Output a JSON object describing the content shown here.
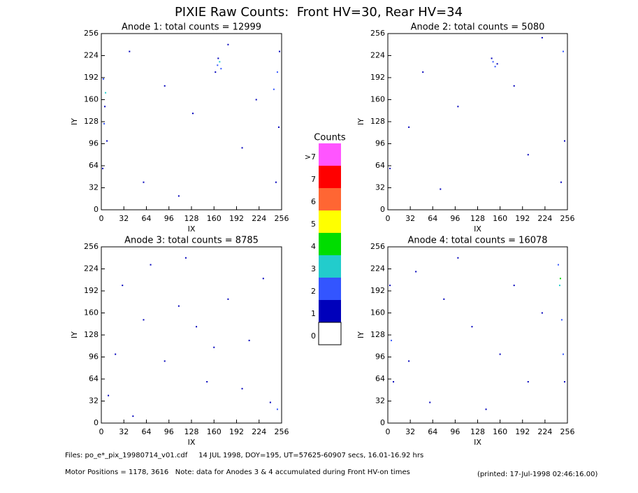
{
  "title": "PIXIE Raw Counts:  Front HV=30, Rear HV=34",
  "chart_data": [
    {
      "type": "scatter",
      "title": "Anode 1: total counts = 12999",
      "xlabel": "IX",
      "ylabel": "IY",
      "xlim": [
        0,
        256
      ],
      "ylim": [
        0,
        256
      ],
      "xticks": [
        0,
        32,
        64,
        96,
        128,
        160,
        192,
        224,
        256
      ],
      "yticks": [
        0,
        32,
        64,
        96,
        128,
        160,
        192,
        224,
        256
      ],
      "x": [
        165,
        168,
        170,
        162,
        166,
        3,
        5,
        8,
        2,
        250,
        252,
        248,
        40,
        90,
        130,
        200,
        60,
        110,
        180,
        220,
        6,
        4,
        245,
        253
      ],
      "y": [
        210,
        215,
        205,
        200,
        220,
        190,
        150,
        100,
        60,
        200,
        120,
        40,
        230,
        180,
        140,
        90,
        40,
        20,
        240,
        160,
        170,
        125,
        175,
        230
      ],
      "values": [
        2,
        3,
        2,
        1,
        1,
        2,
        1,
        1,
        1,
        2,
        1,
        1,
        1,
        1,
        1,
        1,
        1,
        1,
        1,
        1,
        3,
        2,
        2,
        1
      ]
    },
    {
      "type": "scatter",
      "title": "Anode 2: total counts = 5080",
      "xlabel": "IX",
      "ylabel": "IY",
      "xlim": [
        0,
        256
      ],
      "ylim": [
        0,
        256
      ],
      "xticks": [
        0,
        32,
        64,
        96,
        128,
        160,
        192,
        224,
        256
      ],
      "yticks": [
        0,
        32,
        64,
        96,
        128,
        160,
        192,
        224,
        256
      ],
      "x": [
        150,
        153,
        156,
        148,
        250,
        252,
        247,
        3,
        50,
        100,
        200,
        75,
        180,
        30,
        220
      ],
      "y": [
        215,
        208,
        212,
        220,
        230,
        100,
        40,
        60,
        200,
        150,
        80,
        30,
        180,
        120,
        250
      ],
      "values": [
        2,
        2,
        1,
        1,
        2,
        1,
        1,
        1,
        1,
        1,
        1,
        1,
        1,
        1,
        1
      ]
    },
    {
      "type": "scatter",
      "title": "Anode 3: total counts = 8785",
      "xlabel": "IX",
      "ylabel": "IY",
      "xlim": [
        0,
        256
      ],
      "ylim": [
        0,
        256
      ],
      "xticks": [
        0,
        32,
        64,
        96,
        128,
        160,
        192,
        224,
        256
      ],
      "yticks": [
        0,
        32,
        64,
        96,
        128,
        160,
        192,
        224,
        256
      ],
      "x": [
        10,
        30,
        60,
        90,
        120,
        150,
        180,
        210,
        240,
        250,
        20,
        70,
        110,
        160,
        200,
        230,
        45,
        135
      ],
      "y": [
        40,
        200,
        150,
        90,
        240,
        60,
        180,
        120,
        30,
        20,
        100,
        230,
        170,
        110,
        50,
        210,
        10,
        140
      ],
      "values": [
        1,
        1,
        1,
        1,
        1,
        1,
        1,
        1,
        1,
        2,
        1,
        1,
        1,
        1,
        1,
        1,
        1,
        1
      ]
    },
    {
      "type": "scatter",
      "title": "Anode 4: total counts = 16078",
      "xlabel": "IX",
      "ylabel": "IY",
      "xlim": [
        0,
        256
      ],
      "ylim": [
        0,
        256
      ],
      "xticks": [
        0,
        32,
        64,
        96,
        128,
        160,
        192,
        224,
        256
      ],
      "yticks": [
        0,
        32,
        64,
        96,
        128,
        160,
        192,
        224,
        256
      ],
      "x": [
        245,
        248,
        250,
        243,
        252,
        246,
        5,
        8,
        3,
        40,
        80,
        120,
        160,
        200,
        60,
        100,
        140,
        180,
        220,
        30
      ],
      "y": [
        200,
        150,
        100,
        230,
        60,
        210,
        120,
        60,
        200,
        220,
        180,
        140,
        100,
        60,
        30,
        240,
        20,
        200,
        160,
        90
      ],
      "values": [
        3,
        2,
        2,
        2,
        1,
        4,
        2,
        1,
        1,
        1,
        1,
        1,
        1,
        1,
        1,
        1,
        1,
        1,
        1,
        1
      ]
    }
  ],
  "colorbar": {
    "title": "Counts",
    "labels": [
      ">7",
      "7",
      "6",
      "5",
      "4",
      "3",
      "2",
      "1",
      "0"
    ],
    "colors": [
      "#ff55ff",
      "#ff0000",
      "#ff6633",
      "#ffff00",
      "#00dd00",
      "#22cccc",
      "#3355ff",
      "#0000bb",
      "#ffffff"
    ]
  },
  "footer": {
    "files": "Files: po_e*_pix_19980714_v01.cdf     14 JUL 1998, DOY=195, UT=57625-60907 secs, 16.01-16.92 hrs",
    "motor": "Motor Positions = 1178, 3616   Note: data for Anodes 3 & 4 accumulated during Front HV-on times",
    "printed": "(printed: 17-Jul-1998 02:46:16.00)"
  }
}
